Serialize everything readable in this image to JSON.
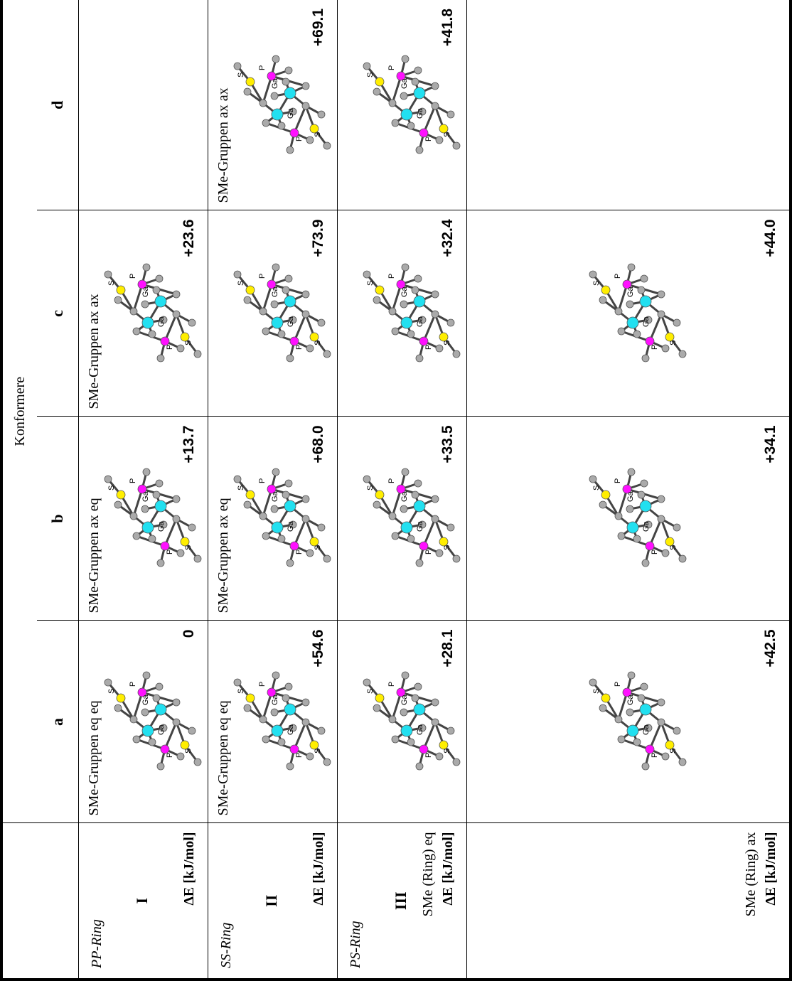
{
  "table": {
    "header": "Konformere",
    "columns": [
      "a",
      "b",
      "c",
      "d"
    ],
    "rows": [
      {
        "ring": "PP-Ring",
        "number": "I",
        "energy_label": "ΔE [kJ/mol]",
        "cells": [
          {
            "caption": "SMe-Gruppen eq eq",
            "energy": "0"
          },
          {
            "caption": "SMe-Gruppen ax eq",
            "energy": "+13.7"
          },
          {
            "caption": "SMe-Gruppen ax ax",
            "energy": "+23.6"
          },
          {}
        ]
      },
      {
        "ring": "SS-Ring",
        "number": "II",
        "energy_label": "ΔE [kJ/mol]",
        "cells": [
          {
            "caption": "SMe-Gruppen eq eq",
            "energy": "+54.6"
          },
          {
            "caption": "SMe-Gruppen ax eq",
            "energy": "+68.0"
          },
          {
            "energy": "+73.9"
          },
          {
            "caption": "SMe-Gruppen ax ax",
            "energy": "+69.1"
          }
        ]
      },
      {
        "ring": "PS-Ring",
        "number": "III",
        "sub": "SMe (Ring) eq",
        "energy_label": "ΔE [kJ/mol]",
        "cells": [
          {
            "energy": "+28.1"
          },
          {
            "energy": "+33.5"
          },
          {
            "energy": "+32.4"
          },
          {
            "energy": "+41.8"
          }
        ]
      },
      {
        "sub": "SMe (Ring) ax",
        "energy_label": "ΔE [kJ/mol]",
        "cells": [
          {
            "energy": "+42.5"
          },
          {
            "energy": "+34.1"
          },
          {
            "energy": "+44.0"
          },
          {}
        ]
      }
    ]
  },
  "atom_labels": {
    "ga": "Ga",
    "p": "P",
    "s": "S"
  }
}
